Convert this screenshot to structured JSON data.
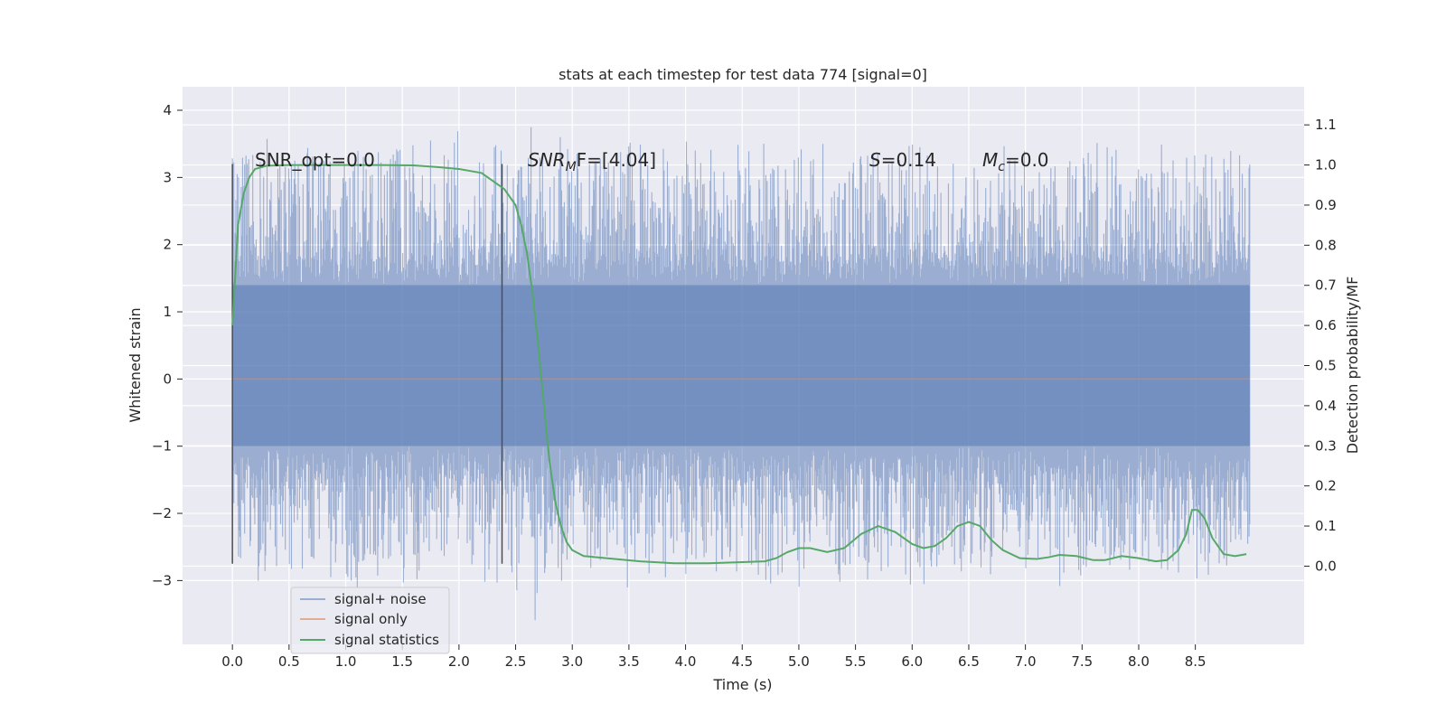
{
  "chart_data": {
    "type": "line",
    "title": "stats at each timestep for test data 774 [signal=0]",
    "xlabel": "Time (s)",
    "ylabel": "Whitened strain",
    "ylabel_right": "Detection probability/MF",
    "xlim": [
      -0.44,
      9.46
    ],
    "ylim": [
      -3.95,
      4.35
    ],
    "ylim_right": [
      -0.195,
      1.195
    ],
    "x_ticks": [
      0.0,
      0.5,
      1.0,
      1.5,
      2.0,
      2.5,
      3.0,
      3.5,
      4.0,
      4.5,
      5.0,
      5.5,
      6.0,
      6.5,
      7.0,
      7.5,
      8.0,
      8.5
    ],
    "x_tick_labels": [
      "0.0",
      "0.5",
      "1.0",
      "1.5",
      "2.0",
      "2.5",
      "3.0",
      "3.5",
      "4.0",
      "4.5",
      "5.0",
      "5.5",
      "6.0",
      "6.5",
      "7.0",
      "7.5",
      "8.0",
      "8.5"
    ],
    "y_ticks": [
      4,
      3,
      2,
      1,
      0,
      -1,
      -2,
      -3
    ],
    "y_tick_labels": [
      "4",
      "3",
      "2",
      "1",
      "0",
      "−1",
      "−2",
      "−3"
    ],
    "y_ticks_right": [
      1.1,
      1.0,
      0.9,
      0.8,
      0.7,
      0.6,
      0.5,
      0.4,
      0.3,
      0.2,
      0.1,
      0.0
    ],
    "y_tick_labels_right": [
      "1.1",
      "1.0",
      "0.9",
      "0.8",
      "0.7",
      "0.6",
      "0.5",
      "0.4",
      "0.3",
      "0.2",
      "0.1",
      "0.0"
    ],
    "annotations": {
      "snr_opt": "SNR_opt=0.0",
      "snr_mf_sym": "SNR",
      "snr_mf_sub": "M",
      "snr_mf_rest": "F=[4.04]",
      "s_sym": "S",
      "s_val": "=0.14",
      "mc_sym": "M",
      "mc_sub": "c",
      "mc_val": "=0.0"
    },
    "vertical_markers": {
      "x": [
        0.0,
        2.38
      ],
      "y_range": [
        -2.75,
        3.2
      ]
    },
    "noise": {
      "name": "signal+ noise",
      "x_range": [
        0.0,
        8.98
      ],
      "core_band": [
        -1.0,
        1.4
      ],
      "max_peak": 4.03,
      "min_trough": -3.6
    },
    "series": [
      {
        "name": "signal+ noise",
        "color": "#4c72b0",
        "x": [],
        "y": []
      },
      {
        "name": "signal only",
        "color": "#dd8452",
        "x": [
          0.0,
          8.98
        ],
        "y": [
          0.0,
          0.0
        ]
      },
      {
        "name": "signal statistics",
        "color": "#55a868",
        "axis": "right",
        "x": [
          0.0,
          0.05,
          0.1,
          0.15,
          0.2,
          0.3,
          0.5,
          0.8,
          1.0,
          1.3,
          1.6,
          1.8,
          2.0,
          2.1,
          2.2,
          2.3,
          2.4,
          2.5,
          2.55,
          2.6,
          2.65,
          2.7,
          2.75,
          2.8,
          2.85,
          2.9,
          2.95,
          3.0,
          3.1,
          3.3,
          3.6,
          3.9,
          4.2,
          4.5,
          4.7,
          4.8,
          4.9,
          5.0,
          5.1,
          5.25,
          5.4,
          5.55,
          5.7,
          5.85,
          6.0,
          6.1,
          6.2,
          6.3,
          6.4,
          6.5,
          6.6,
          6.7,
          6.8,
          6.95,
          7.1,
          7.2,
          7.3,
          7.45,
          7.6,
          7.7,
          7.85,
          8.0,
          8.15,
          8.25,
          8.35,
          8.42,
          8.47,
          8.52,
          8.58,
          8.65,
          8.75,
          8.85,
          8.95
        ],
        "y": [
          0.6,
          0.85,
          0.93,
          0.97,
          0.99,
          0.998,
          1.0,
          1.0,
          1.0,
          1.0,
          0.999,
          0.995,
          0.99,
          0.985,
          0.98,
          0.96,
          0.94,
          0.9,
          0.85,
          0.78,
          0.68,
          0.55,
          0.4,
          0.26,
          0.16,
          0.1,
          0.06,
          0.04,
          0.025,
          0.02,
          0.012,
          0.007,
          0.007,
          0.01,
          0.012,
          0.02,
          0.035,
          0.045,
          0.045,
          0.035,
          0.045,
          0.08,
          0.1,
          0.085,
          0.055,
          0.045,
          0.05,
          0.07,
          0.1,
          0.11,
          0.1,
          0.065,
          0.04,
          0.02,
          0.018,
          0.022,
          0.028,
          0.025,
          0.015,
          0.015,
          0.025,
          0.02,
          0.012,
          0.015,
          0.04,
          0.08,
          0.14,
          0.14,
          0.12,
          0.07,
          0.03,
          0.025,
          0.03
        ]
      }
    ],
    "legend": {
      "location": "lower-left",
      "entries": [
        "signal+ noise",
        "signal only",
        "signal statistics"
      ]
    }
  },
  "colors": {
    "background": "#eaeaf2",
    "grid": "#ffffff",
    "noise": "#4c72b0",
    "signal_only": "#dd8452",
    "statistics": "#55a868",
    "marker": "#4d4d4d"
  }
}
